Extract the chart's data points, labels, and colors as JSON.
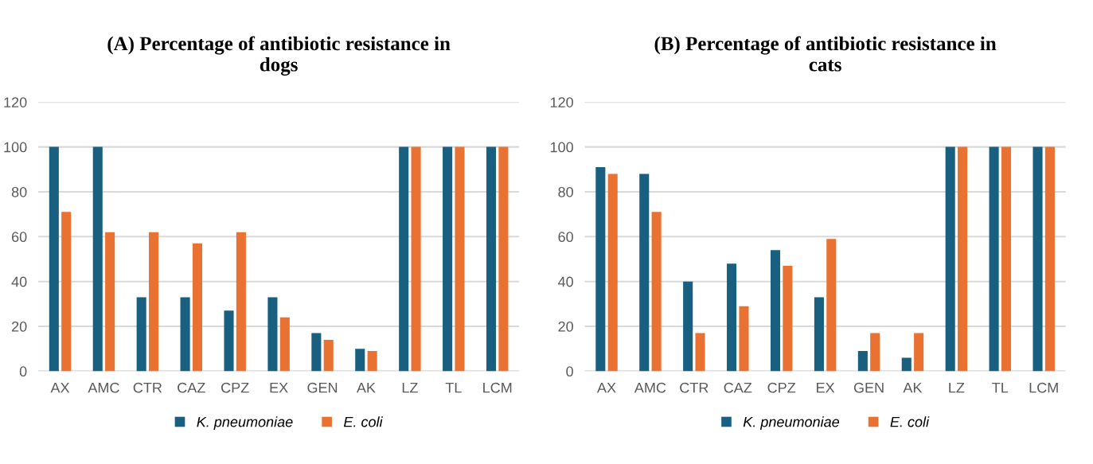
{
  "chart_data": [
    {
      "type": "bar",
      "title": "(A) Percentage of antibiotic resistance in\ndogs",
      "categories": [
        "AX",
        "AMC",
        "CTR",
        "CAZ",
        "CPZ",
        "EX",
        "GEN",
        "AK",
        "LZ",
        "TL",
        "LCM"
      ],
      "series": [
        {
          "name": "K. pneumoniae",
          "color": "#185f80",
          "values": [
            100,
            100,
            33,
            33,
            27,
            33,
            17,
            10,
            100,
            100,
            100
          ]
        },
        {
          "name": "E. coli",
          "color": "#e97132",
          "values": [
            71,
            62,
            62,
            57,
            62,
            24,
            14,
            9,
            100,
            100,
            100
          ]
        }
      ],
      "ylim": [
        0,
        120
      ],
      "yticks": [
        0,
        20,
        40,
        60,
        80,
        100,
        120
      ],
      "grid": "y",
      "legend": "bottom"
    },
    {
      "type": "bar",
      "title": "(B) Percentage of antibiotic resistance in\ncats",
      "categories": [
        "AX",
        "AMC",
        "CTR",
        "CAZ",
        "CPZ",
        "EX",
        "GEN",
        "AK",
        "LZ",
        "TL",
        "LCM"
      ],
      "series": [
        {
          "name": "K. pneumoniae",
          "color": "#185f80",
          "values": [
            91,
            88,
            40,
            48,
            54,
            33,
            9,
            6,
            100,
            100,
            100
          ]
        },
        {
          "name": "E. coli",
          "color": "#e97132",
          "values": [
            88,
            71,
            17,
            29,
            47,
            59,
            17,
            17,
            100,
            100,
            100
          ]
        }
      ],
      "ylim": [
        0,
        120
      ],
      "yticks": [
        0,
        20,
        40,
        60,
        80,
        100,
        120
      ],
      "grid": "y",
      "legend": "bottom"
    }
  ]
}
